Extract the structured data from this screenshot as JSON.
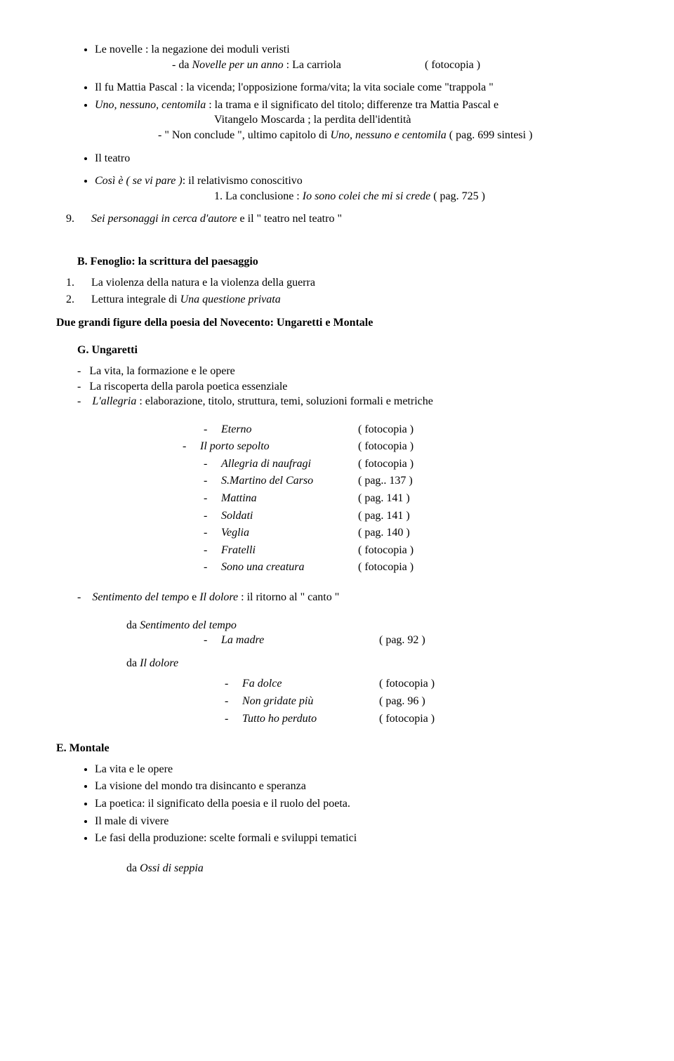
{
  "s1": {
    "b1": "Le novelle : la negazione dei moduli veristi",
    "b1a_prefix": "- da  ",
    "b1a_italic": "Novelle per un anno",
    "b1a_rest": " :  La carriola",
    "b1a_ref": "( fotocopia )",
    "b2": "Il fu Mattia Pascal : la vicenda;  l'opposizione forma/vita;  la vita sociale come  \"trappola \"",
    "b3_italic": "Uno, nessuno, centomila",
    "b3_rest": " :   la trama e il significato del titolo;   differenze tra Mattia Pascal e",
    "b3_line2": "Vitangelo Moscarda ;  la perdita dell'identità",
    "b3_line3_prefix": "-  \" Non conclude \", ultimo capitolo  di  ",
    "b3_line3_italic": "Uno,  nessuno  e  centomila",
    "b3_line3_ref": "   (  pag. 699 sintesi )",
    "b4": "Il teatro",
    "b5_italic": "Così è ( se vi pare )",
    "b5_rest": ": il relativismo conoscitivo",
    "b5_sub_prefix": "1.   La conclusione  :   ",
    "b5_sub_italic": "Io sono colei che mi si crede",
    "b5_sub_ref": "    ( pag. 725 )",
    "n9_italic": "Sei personaggi in cerca d'autore ",
    "n9_rest": "e il \" teatro nel teatro \""
  },
  "sB": {
    "title_letter": "B.",
    "title_text": "Fenoglio: la scrittura del paesaggio",
    "i1": "La violenza della natura e la violenza della guerra",
    "i2_prefix": "Lettura integrale di ",
    "i2_italic": "Una questione privata"
  },
  "due": "Due grandi figure della poesia del Novecento: Ungaretti e Montale",
  "sG": {
    "title": "G. Ungaretti",
    "d1": "La vita, la formazione e le opere",
    "d2": "La riscoperta della parola poetica essenziale",
    "d3_italic": "L'allegria",
    "d3_rest": " : elaborazione, titolo, struttura, temi, soluzioni formali e metriche",
    "poems": [
      {
        "title": "Eterno",
        "ref": "( fotocopia )",
        "deep": true,
        "italic": true
      },
      {
        "title": "Il porto sepolto",
        "ref": "( fotocopia )",
        "deep": false,
        "italic": true
      },
      {
        "title": "Allegria di naufragi",
        "ref": "( fotocopia )",
        "deep": true,
        "italic": true
      },
      {
        "title": " S.Martino del Carso",
        "ref": "( pag.. 137 )",
        "deep": true,
        "italic": true
      },
      {
        "title": "Mattina",
        "ref": "( pag.  141 )",
        "deep": true,
        "italic": true
      },
      {
        "title": "Soldati",
        "ref": "( pag.  141 )",
        "deep": true,
        "italic": true
      },
      {
        "title": "Veglia",
        "ref": "( pag. 140 )",
        "deep": true,
        "italic": true
      },
      {
        "title": "Fratelli",
        "ref": "( fotocopia )",
        "deep": true,
        "italic": true
      },
      {
        "title": "Sono una creatura",
        "ref": "( fotocopia )",
        "deep": true,
        "italic": true
      }
    ],
    "sent_italic1": "Sentimento del tempo ",
    "sent_mid": "e ",
    "sent_italic2": "Il dolore",
    "sent_rest": " : il ritorno al \" canto \"",
    "da1_prefix": "da   ",
    "da1_italic": "Sentimento del tempo",
    "da1_poem_title": "La madre",
    "da1_poem_ref": "( pag. 92 )",
    "da2_prefix": "da  ",
    "da2_italic": "Il dolore",
    "da2_poems": [
      {
        "title": "Fa dolce",
        "ref": "( fotocopia )",
        "deep": true
      },
      {
        "title": " Non gridate più",
        "ref": "( pag. 96 )",
        "deep": true
      },
      {
        "title": "Tutto ho perduto",
        "ref": "( fotocopia )",
        "deep": true
      }
    ]
  },
  "sE": {
    "title": "E. Montale",
    "b1": "La vita e le opere",
    "b2": "La visione del mondo tra disincanto e speranza",
    "b3": "La poetica: il significato della poesia e il ruolo del poeta.",
    "b4": "Il male di vivere",
    "b5": "Le fasi della produzione: scelte formali e sviluppi tematici",
    "da_prefix": "da  ",
    "da_italic": "Ossi di seppia"
  }
}
